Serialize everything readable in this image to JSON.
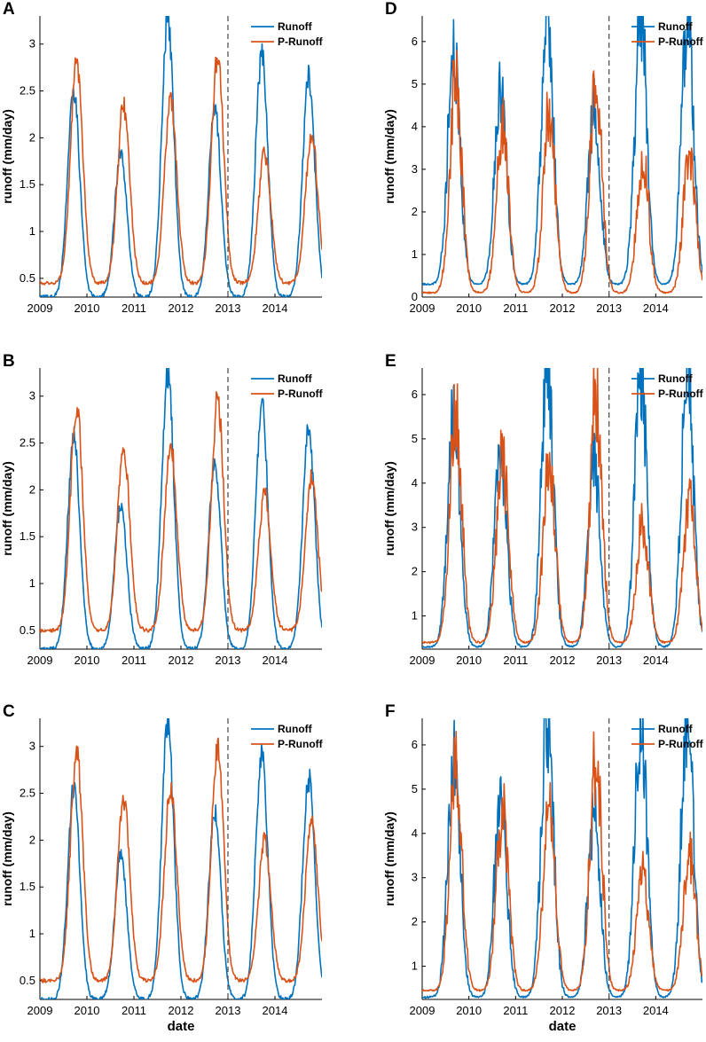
{
  "chart_data": [
    {
      "panel_label": "A",
      "type": "line",
      "ylabel": "runoff (mm/day)",
      "xlabel": "",
      "ylim": [
        0.3,
        3.3
      ],
      "yticks": [
        0.5,
        1,
        1.5,
        2,
        2.5,
        3
      ],
      "xlim": [
        2009,
        2015
      ],
      "xticks": [
        2009,
        2010,
        2011,
        2012,
        2013,
        2014
      ],
      "xtick_labels": [
        "2009",
        "2010",
        "2011",
        "2012",
        "2013",
        "2014"
      ],
      "split_year": 2013,
      "legend": [
        "Runoff",
        "P-Runoff"
      ],
      "series": [
        {
          "name": "Runoff",
          "color": "#0072BD",
          "peaks": [
            2.5,
            1.85,
            3.25,
            2.3,
            2.9,
            2.65
          ],
          "baseline": 0.3,
          "peak_pos": 0.72
        },
        {
          "name": "P-Runoff",
          "color": "#D95319",
          "peaks": [
            2.8,
            2.35,
            2.4,
            2.85,
            1.85,
            2.05
          ],
          "baseline": 0.45,
          "peak_pos": 0.78
        }
      ]
    },
    {
      "panel_label": "B",
      "type": "line",
      "ylabel": "runoff (mm/day)",
      "xlabel": "",
      "ylim": [
        0.3,
        3.3
      ],
      "yticks": [
        0.5,
        1,
        1.5,
        2,
        2.5,
        3
      ],
      "xlim": [
        2009,
        2015
      ],
      "xticks": [
        2009,
        2010,
        2011,
        2012,
        2013,
        2014
      ],
      "xtick_labels": [
        "2009",
        "2010",
        "2011",
        "2012",
        "2013",
        "2014"
      ],
      "split_year": 2013,
      "legend": [
        "Runoff",
        "P-Runoff"
      ],
      "series": [
        {
          "name": "Runoff",
          "color": "#0072BD",
          "peaks": [
            2.55,
            1.85,
            3.25,
            2.3,
            2.9,
            2.65
          ],
          "baseline": 0.3,
          "peak_pos": 0.72
        },
        {
          "name": "P-Runoff",
          "color": "#D95319",
          "peaks": [
            2.9,
            2.45,
            2.5,
            2.95,
            1.95,
            2.15
          ],
          "baseline": 0.5,
          "peak_pos": 0.78
        }
      ]
    },
    {
      "panel_label": "C",
      "type": "line",
      "ylabel": "runoff (mm/day)",
      "xlabel": "date",
      "ylim": [
        0.3,
        3.3
      ],
      "yticks": [
        0.5,
        1,
        1.5,
        2,
        2.5,
        3
      ],
      "xlim": [
        2009,
        2015
      ],
      "xticks": [
        2009,
        2010,
        2011,
        2012,
        2013,
        2014
      ],
      "xtick_labels": [
        "2009",
        "2010",
        "2011",
        "2012",
        "2013",
        "2014"
      ],
      "split_year": 2013,
      "legend": [
        "Runoff",
        "P-Runoff"
      ],
      "series": [
        {
          "name": "Runoff",
          "color": "#0072BD",
          "peaks": [
            2.55,
            1.85,
            3.25,
            2.3,
            2.9,
            2.65
          ],
          "baseline": 0.3,
          "peak_pos": 0.72
        },
        {
          "name": "P-Runoff",
          "color": "#D95319",
          "peaks": [
            2.95,
            2.45,
            2.55,
            3.0,
            2.0,
            2.2
          ],
          "baseline": 0.5,
          "peak_pos": 0.78
        }
      ]
    },
    {
      "panel_label": "D",
      "type": "line",
      "ylabel": "runoff (mm/day)",
      "xlabel": "",
      "ylim": [
        0,
        6.6
      ],
      "yticks": [
        0,
        1,
        2,
        3,
        4,
        5,
        6
      ],
      "xlim": [
        2009,
        2015
      ],
      "xticks": [
        2009,
        2010,
        2011,
        2012,
        2013,
        2014
      ],
      "xtick_labels": [
        "2009",
        "2010",
        "2011",
        "2012",
        "2013",
        "2014"
      ],
      "split_year": 2013,
      "legend": [
        "Runoff",
        "P-Runoff"
      ],
      "series": [
        {
          "name": "Runoff",
          "color": "#0072BD",
          "peaks": [
            5.7,
            4.7,
            6.6,
            4.4,
            6.5,
            6.6
          ],
          "baseline": 0.3,
          "peak_pos": 0.68
        },
        {
          "name": "P-Runoff",
          "color": "#D95319",
          "peaks": [
            4.9,
            3.9,
            4.1,
            5.0,
            3.0,
            3.4
          ],
          "baseline": 0.1,
          "peak_pos": 0.72
        }
      ]
    },
    {
      "panel_label": "E",
      "type": "line",
      "ylabel": "runoff (mm/day)",
      "xlabel": "",
      "ylim": [
        0.25,
        6.6
      ],
      "yticks": [
        1,
        2,
        3,
        4,
        5,
        6
      ],
      "xlim": [
        2009,
        2015
      ],
      "xticks": [
        2009,
        2010,
        2011,
        2012,
        2013,
        2014
      ],
      "xtick_labels": [
        "2009",
        "2010",
        "2011",
        "2012",
        "2013",
        "2014"
      ],
      "split_year": 2013,
      "legend": [
        "Runoff",
        "P-Runoff"
      ],
      "series": [
        {
          "name": "Runoff",
          "color": "#0072BD",
          "peaks": [
            5.7,
            4.7,
            6.6,
            4.4,
            6.5,
            6.6
          ],
          "baseline": 0.3,
          "peak_pos": 0.68
        },
        {
          "name": "P-Runoff",
          "color": "#D95319",
          "peaks": [
            5.5,
            4.4,
            4.4,
            5.7,
            3.1,
            3.6
          ],
          "baseline": 0.4,
          "peak_pos": 0.72
        }
      ]
    },
    {
      "panel_label": "F",
      "type": "line",
      "ylabel": "runoff (mm/day)",
      "xlabel": "date",
      "ylim": [
        0.25,
        6.6
      ],
      "yticks": [
        1,
        2,
        3,
        4,
        5,
        6
      ],
      "xlim": [
        2009,
        2015
      ],
      "xticks": [
        2009,
        2010,
        2011,
        2012,
        2013,
        2014
      ],
      "xtick_labels": [
        "2009",
        "2010",
        "2011",
        "2012",
        "2013",
        "2014"
      ],
      "split_year": 2013,
      "legend": [
        "Runoff",
        "P-Runoff"
      ],
      "series": [
        {
          "name": "Runoff",
          "color": "#0072BD",
          "peaks": [
            5.7,
            4.7,
            6.6,
            4.4,
            6.5,
            6.6
          ],
          "baseline": 0.3,
          "peak_pos": 0.68
        },
        {
          "name": "P-Runoff",
          "color": "#D95319",
          "peaks": [
            5.6,
            4.4,
            4.5,
            5.7,
            3.1,
            3.6
          ],
          "baseline": 0.45,
          "peak_pos": 0.72
        }
      ]
    }
  ]
}
